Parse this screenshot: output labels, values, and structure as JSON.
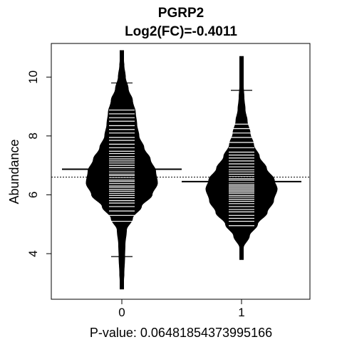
{
  "chart_data": {
    "type": "beanplot",
    "title": "PGRP2",
    "subtitle": "Log2(FC)=-0.4011",
    "ylabel": "Abundance",
    "xlabel": "P-value: 0.06481854373995166",
    "categories": [
      "0",
      "1"
    ],
    "ylim": [
      2.6,
      11.2
    ],
    "yticks": [
      4,
      6,
      8,
      10
    ],
    "overall_mean": 6.6,
    "grid": false,
    "legend": "none",
    "series": [
      {
        "category": "0",
        "mean": 6.87,
        "min": 3.9,
        "max": 9.8,
        "range": [
          2.8,
          10.9
        ],
        "density": [
          [
            2.8,
            0.02
          ],
          [
            3.3,
            0.06
          ],
          [
            3.9,
            0.08
          ],
          [
            4.3,
            0.09
          ],
          [
            4.8,
            0.13
          ],
          [
            5.2,
            0.3
          ],
          [
            5.6,
            0.55
          ],
          [
            6.0,
            0.85
          ],
          [
            6.4,
            1.0
          ],
          [
            6.8,
            0.95
          ],
          [
            7.2,
            0.8
          ],
          [
            7.6,
            0.62
          ],
          [
            8.0,
            0.48
          ],
          [
            8.4,
            0.42
          ],
          [
            8.8,
            0.38
          ],
          [
            9.2,
            0.3
          ],
          [
            9.6,
            0.18
          ],
          [
            10.0,
            0.1
          ],
          [
            10.4,
            0.06
          ],
          [
            10.9,
            0.0
          ]
        ],
        "observations": [
          3.9,
          5.1,
          5.3,
          5.45,
          5.6,
          5.72,
          5.8,
          5.9,
          5.98,
          6.05,
          6.12,
          6.18,
          6.25,
          6.3,
          6.38,
          6.45,
          6.5,
          6.58,
          6.65,
          6.7,
          6.78,
          6.85,
          6.92,
          7.0,
          7.08,
          7.15,
          7.22,
          7.3,
          7.4,
          7.48,
          7.6,
          7.72,
          7.85,
          7.95,
          8.1,
          8.22,
          8.35,
          8.5,
          8.62,
          8.75,
          8.88,
          9.8
        ]
      },
      {
        "category": "1",
        "mean": 6.45,
        "min": 4.8,
        "max": 9.55,
        "range": [
          3.8,
          10.7
        ],
        "density": [
          [
            3.8,
            0.0
          ],
          [
            4.2,
            0.05
          ],
          [
            4.6,
            0.22
          ],
          [
            5.0,
            0.45
          ],
          [
            5.4,
            0.72
          ],
          [
            5.8,
            0.9
          ],
          [
            6.2,
            1.0
          ],
          [
            6.5,
            0.92
          ],
          [
            6.9,
            0.7
          ],
          [
            7.3,
            0.5
          ],
          [
            7.7,
            0.34
          ],
          [
            8.1,
            0.24
          ],
          [
            8.5,
            0.16
          ],
          [
            8.9,
            0.1
          ],
          [
            9.3,
            0.07
          ],
          [
            9.7,
            0.05
          ],
          [
            10.1,
            0.04
          ],
          [
            10.7,
            0.0
          ]
        ],
        "observations": [
          4.8,
          4.95,
          5.1,
          5.2,
          5.3,
          5.42,
          5.5,
          5.6,
          5.7,
          5.78,
          5.85,
          5.92,
          5.98,
          6.05,
          6.1,
          6.15,
          6.2,
          6.25,
          6.3,
          6.35,
          6.42,
          6.5,
          6.55,
          6.62,
          6.7,
          6.78,
          6.85,
          6.95,
          7.05,
          7.15,
          7.25,
          7.35,
          7.45,
          7.6,
          7.78,
          7.95,
          8.1,
          8.25,
          8.4,
          9.55
        ]
      }
    ]
  }
}
